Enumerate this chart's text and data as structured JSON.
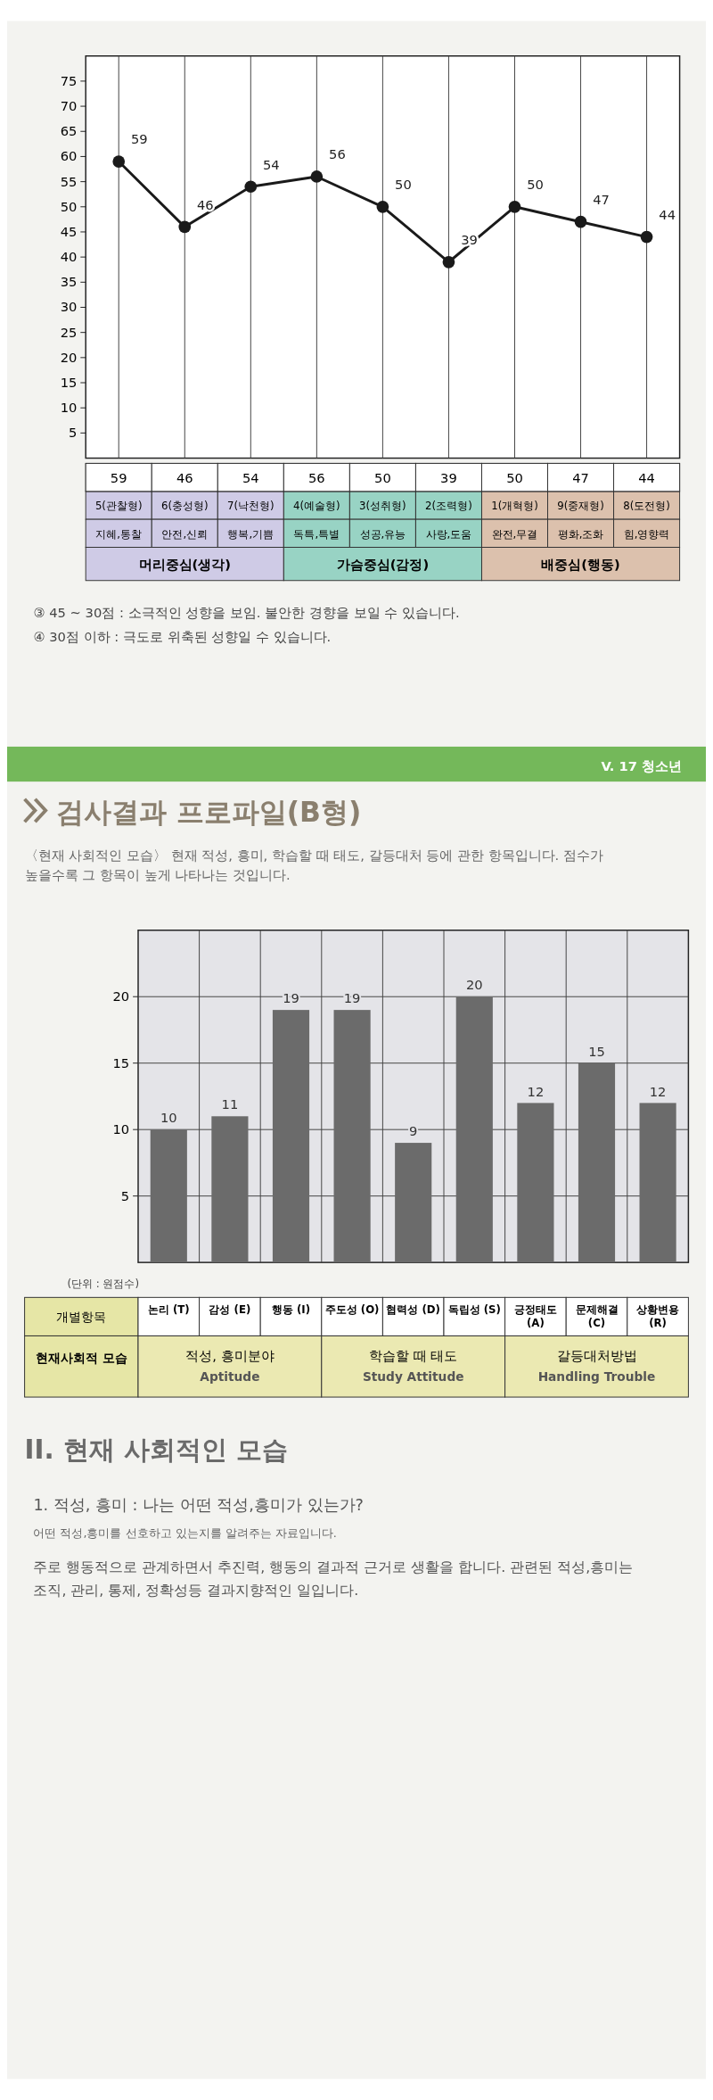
{
  "chart_data": [
    {
      "type": "line",
      "categories": [
        "5(관찰형)",
        "6(충성형)",
        "7(낙천형)",
        "4(예술형)",
        "3(성취형)",
        "2(조력형)",
        "1(개혁형)",
        "9(중재형)",
        "8(도전형)"
      ],
      "values": [
        59,
        46,
        54,
        56,
        50,
        39,
        50,
        47,
        44
      ],
      "color": "#1a1a1a",
      "ylim": [
        0,
        80
      ],
      "yticks": [
        5,
        10,
        15,
        20,
        25,
        30,
        35,
        40,
        45,
        50,
        55,
        60,
        65,
        70,
        75
      ],
      "grid": "x",
      "marker": "circle",
      "data_labels": true,
      "annotations": [
        "지혜,통찰",
        "안전,신뢰",
        "행복,기쁨",
        "독특,특별",
        "성공,유능",
        "사랑,도움",
        "완전,무결",
        "평화,조화",
        "힘,영향력",
        "머리중심(생각)",
        "가슴중심(감정)",
        "배중심(행동)",
        "59",
        "46",
        "54",
        "56",
        "50",
        "39",
        "50",
        "47",
        "44",
        "③ 45 ~ 30점 : 소극적인 성향을 보임. 불안한 경향을 보일 수 있습니다.",
        "④ 30점 이하 : 극도로 위축된 성향일 수 있습니다."
      ]
    },
    {
      "type": "bar",
      "title": "검사결과 프로파일(B형)",
      "subtitle": "〈현재 사회적인 모습〉 현재 적성, 흥미, 학습할 때 태도, 갈등대처 등에 관한 항목입니다. 점수가 높을수록 그 항목이 높게 나타나는 것입니다.",
      "ylabel": "(단위 : 원점수)",
      "categories": [
        "논리 (T)",
        "감성 (E)",
        "행동 (I)",
        "주도성 (O)",
        "협력성 (D)",
        "독립성 (S)",
        "긍정태도 (A)",
        "문제해결 (C)",
        "상황변용 (R)"
      ],
      "values": [
        10,
        11,
        19,
        19,
        9,
        20,
        12,
        15,
        12
      ],
      "color": "#6b6b6b",
      "ylim": [
        0,
        25
      ],
      "yticks": [
        5,
        10,
        15,
        20
      ],
      "grid": true,
      "data_labels": true,
      "annotations": [
        "개별항목",
        "현재사회적 모습",
        "적성, 흥미분야",
        "Aptitude",
        "학습할 때 태도",
        "Study Attitude",
        "갈등대처방법",
        "Handling Trouble",
        "V. 17 청소년",
        "II. 현재 사회적인 모습",
        "1. 적성, 흥미 : 나는 어떤 적성,흥미가 있는가?",
        "어떤 적성,흥미를 선호하고 있는지를 알려주는 자료입니다.",
        "주로 행동적으로 관계하면서 추진력, 행동의 결과적 근거로 생활을 합니다. 관련된 적성,흥미는",
        "조직, 관리, 통제, 정확성등 결과지향적인 일입니다."
      ]
    }
  ]
}
